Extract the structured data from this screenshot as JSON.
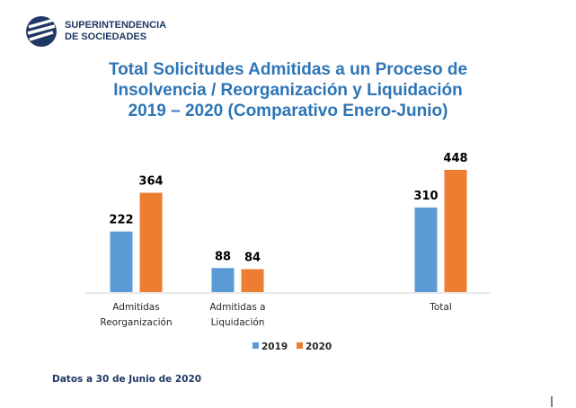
{
  "header": {
    "org_line1": "SUPERINTENDENCIA",
    "org_line2": "DE SOCIEDADES"
  },
  "chart_data": {
    "type": "bar",
    "title": "Total Solicitudes Admitidas a un Proceso de\nInsolvencia / Reorganización y Liquidación\n2019 – 2020 (Comparativo Enero-Junio)",
    "categories": [
      "Admitidas\nReorganización",
      "Admitidas a\nLiquidación",
      null,
      "Total"
    ],
    "series": [
      {
        "name": "2019",
        "color": "#5b9bd5",
        "values": [
          222,
          88,
          null,
          310
        ]
      },
      {
        "name": "2020",
        "color": "#ed7d31",
        "values": [
          364,
          84,
          null,
          448
        ]
      }
    ],
    "legend": "bottom"
  },
  "footnote": "Datos a 30 de Junio de 2020"
}
